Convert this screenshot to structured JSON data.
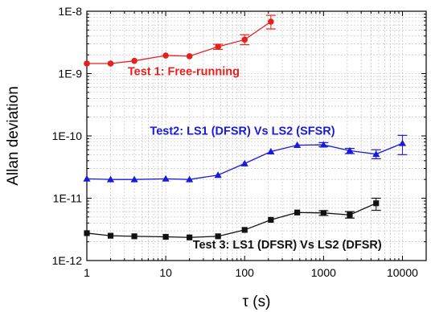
{
  "chart_data": {
    "type": "scatter",
    "xlabel": "τ (s)",
    "ylabel": "Allan deviation",
    "x_scale": "log",
    "y_scale": "log",
    "xlim": [
      1,
      20000
    ],
    "ylim": [
      1e-12,
      1e-08
    ],
    "x_ticks": [
      {
        "value": 1,
        "label": "1"
      },
      {
        "value": 10,
        "label": "10"
      },
      {
        "value": 100,
        "label": "100"
      },
      {
        "value": 1000,
        "label": "1000"
      },
      {
        "value": 10000,
        "label": "10000"
      }
    ],
    "y_ticks": [
      {
        "value": 1e-12,
        "label": "1E-12"
      },
      {
        "value": 1e-11,
        "label": "1E-11"
      },
      {
        "value": 1e-10,
        "label": "1E-10"
      },
      {
        "value": 1e-09,
        "label": "1E-9"
      },
      {
        "value": 1e-08,
        "label": "1E-8"
      }
    ],
    "grid": true,
    "series": [
      {
        "name": "Test 1: Free-running",
        "color": "#e8201c",
        "marker": "circle",
        "x": [
          1,
          2,
          4,
          10,
          20,
          46,
          100,
          215
        ],
        "y": [
          1.45e-09,
          1.45e-09,
          1.6e-09,
          1.95e-09,
          1.9e-09,
          2.7e-09,
          3.5e-09,
          6.8e-09
        ],
        "err_low": [
          1.45e-09,
          1.45e-09,
          1.6e-09,
          1.95e-09,
          1.9e-09,
          2.45e-09,
          2.9e-09,
          5.2e-09
        ],
        "err_high": [
          1.45e-09,
          1.45e-09,
          1.6e-09,
          1.95e-09,
          1.9e-09,
          2.95e-09,
          4.2e-09,
          8.6e-09
        ]
      },
      {
        "name": "Test2: LS1 (DFSR) Vs LS2 (SFSR)",
        "color": "#1a1adc",
        "marker": "triangle",
        "x": [
          1,
          2,
          4,
          10,
          20,
          46,
          100,
          215,
          464,
          1000,
          2150,
          4640,
          10000
        ],
        "y": [
          2.05e-11,
          2e-11,
          2e-11,
          2.05e-11,
          2e-11,
          2.35e-11,
          3.6e-11,
          5.6e-11,
          7.1e-11,
          7.2e-11,
          5.8e-11,
          5.1e-11,
          7.6e-11
        ],
        "err_low": [
          2.05e-11,
          2e-11,
          2e-11,
          2.05e-11,
          2e-11,
          2.35e-11,
          3.6e-11,
          5.6e-11,
          7.1e-11,
          6.7e-11,
          5.2e-11,
          4.3e-11,
          5e-11
        ],
        "err_high": [
          2.05e-11,
          2e-11,
          2e-11,
          2.05e-11,
          2e-11,
          2.35e-11,
          3.6e-11,
          5.6e-11,
          7.1e-11,
          7.8e-11,
          6.3e-11,
          6e-11,
          1.02e-10
        ]
      },
      {
        "name": "Test 3: LS1 (DFSR) Vs LS2 (DFSR)",
        "color": "#111111",
        "marker": "square",
        "x": [
          1,
          2,
          4,
          10,
          20,
          46,
          100,
          215,
          464,
          1000,
          2150,
          4640
        ],
        "y": [
          2.75e-12,
          2.5e-12,
          2.45e-12,
          2.4e-12,
          2.35e-12,
          2.45e-12,
          3.1e-12,
          4.5e-12,
          5.9e-12,
          5.8e-12,
          5.4e-12,
          8.3e-12
        ],
        "err_low": [
          2.75e-12,
          2.5e-12,
          2.45e-12,
          2.4e-12,
          2.35e-12,
          2.45e-12,
          3.1e-12,
          4.5e-12,
          5.9e-12,
          5.3e-12,
          4.8e-12,
          6.4e-12
        ],
        "err_high": [
          2.75e-12,
          2.5e-12,
          2.45e-12,
          2.4e-12,
          2.35e-12,
          2.45e-12,
          3.1e-12,
          4.5e-12,
          5.9e-12,
          6.3e-12,
          6.1e-12,
          1e-11
        ]
      }
    ],
    "annotations": [
      {
        "text": "Test 1: Free-running",
        "color": "#e8201c",
        "x": 3.3,
        "y": 9.4e-10
      },
      {
        "text": "Test2: LS1 (DFSR) Vs LS2 (SFSR)",
        "color": "#1a1adc",
        "x": 6.3,
        "y": 1.04e-10
      },
      {
        "text": "Test 3: LS1 (DFSR) Vs LS2 (DFSR)",
        "color": "#111111",
        "x": 22,
        "y": 1.55e-12
      }
    ]
  }
}
